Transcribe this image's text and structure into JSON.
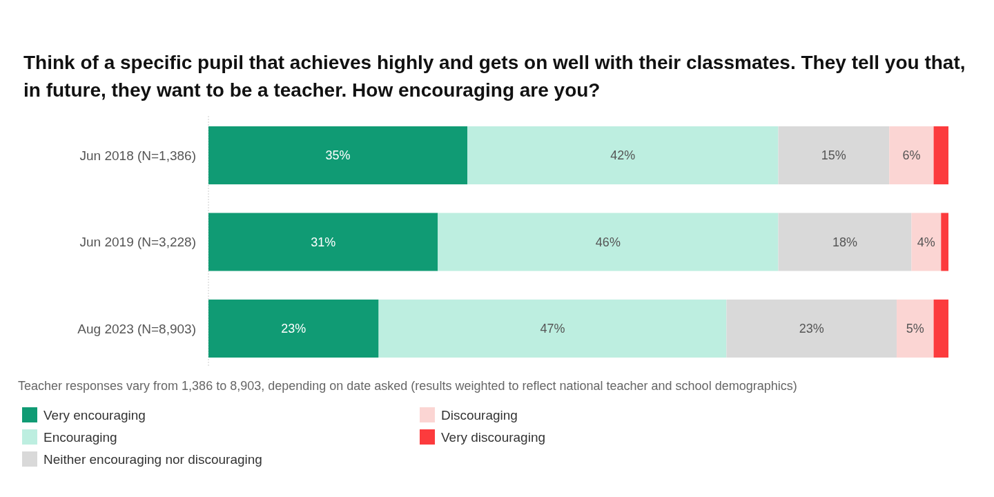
{
  "chart_data": {
    "type": "bar",
    "orientation": "horizontal",
    "stacked": true,
    "title": "Think of a specific pupil that achieves highly and gets on well with their classmates. They tell you that, in future, they want to be a teacher. How encouraging are you?",
    "categories": [
      "Jun 2018 (N=1,386)",
      "Jun 2019 (N=3,228)",
      "Aug 2023 (N=8,903)"
    ],
    "xlim": [
      0,
      100
    ],
    "tick_labels": "y",
    "legend": "bottom",
    "series": [
      {
        "name": "Very encouraging",
        "color": "#109b74",
        "values": [
          35,
          31,
          23
        ],
        "value_labels": [
          "35%",
          "31%",
          "23%"
        ]
      },
      {
        "name": "Encouraging",
        "color": "#bdeee0",
        "values": [
          42,
          46,
          47
        ],
        "value_labels": [
          "42%",
          "46%",
          "47%"
        ]
      },
      {
        "name": "Neither encouraging nor discouraging",
        "color": "#d9d9d9",
        "values": [
          15,
          18,
          23
        ],
        "value_labels": [
          "15%",
          "18%",
          "23%"
        ]
      },
      {
        "name": "Discouraging",
        "color": "#fbd5d3",
        "values": [
          6,
          4,
          5
        ],
        "value_labels": [
          "6%",
          "4%",
          "5%"
        ]
      },
      {
        "name": "Very discouraging",
        "color": "#fc3b3d",
        "values": [
          2,
          1,
          2
        ],
        "value_labels": [
          null,
          null,
          null
        ]
      }
    ],
    "annotations": [
      "Teacher responses vary from 1,386 to 8,903, depending on date asked (results weighted to reflect national teacher and school demographics)"
    ]
  }
}
